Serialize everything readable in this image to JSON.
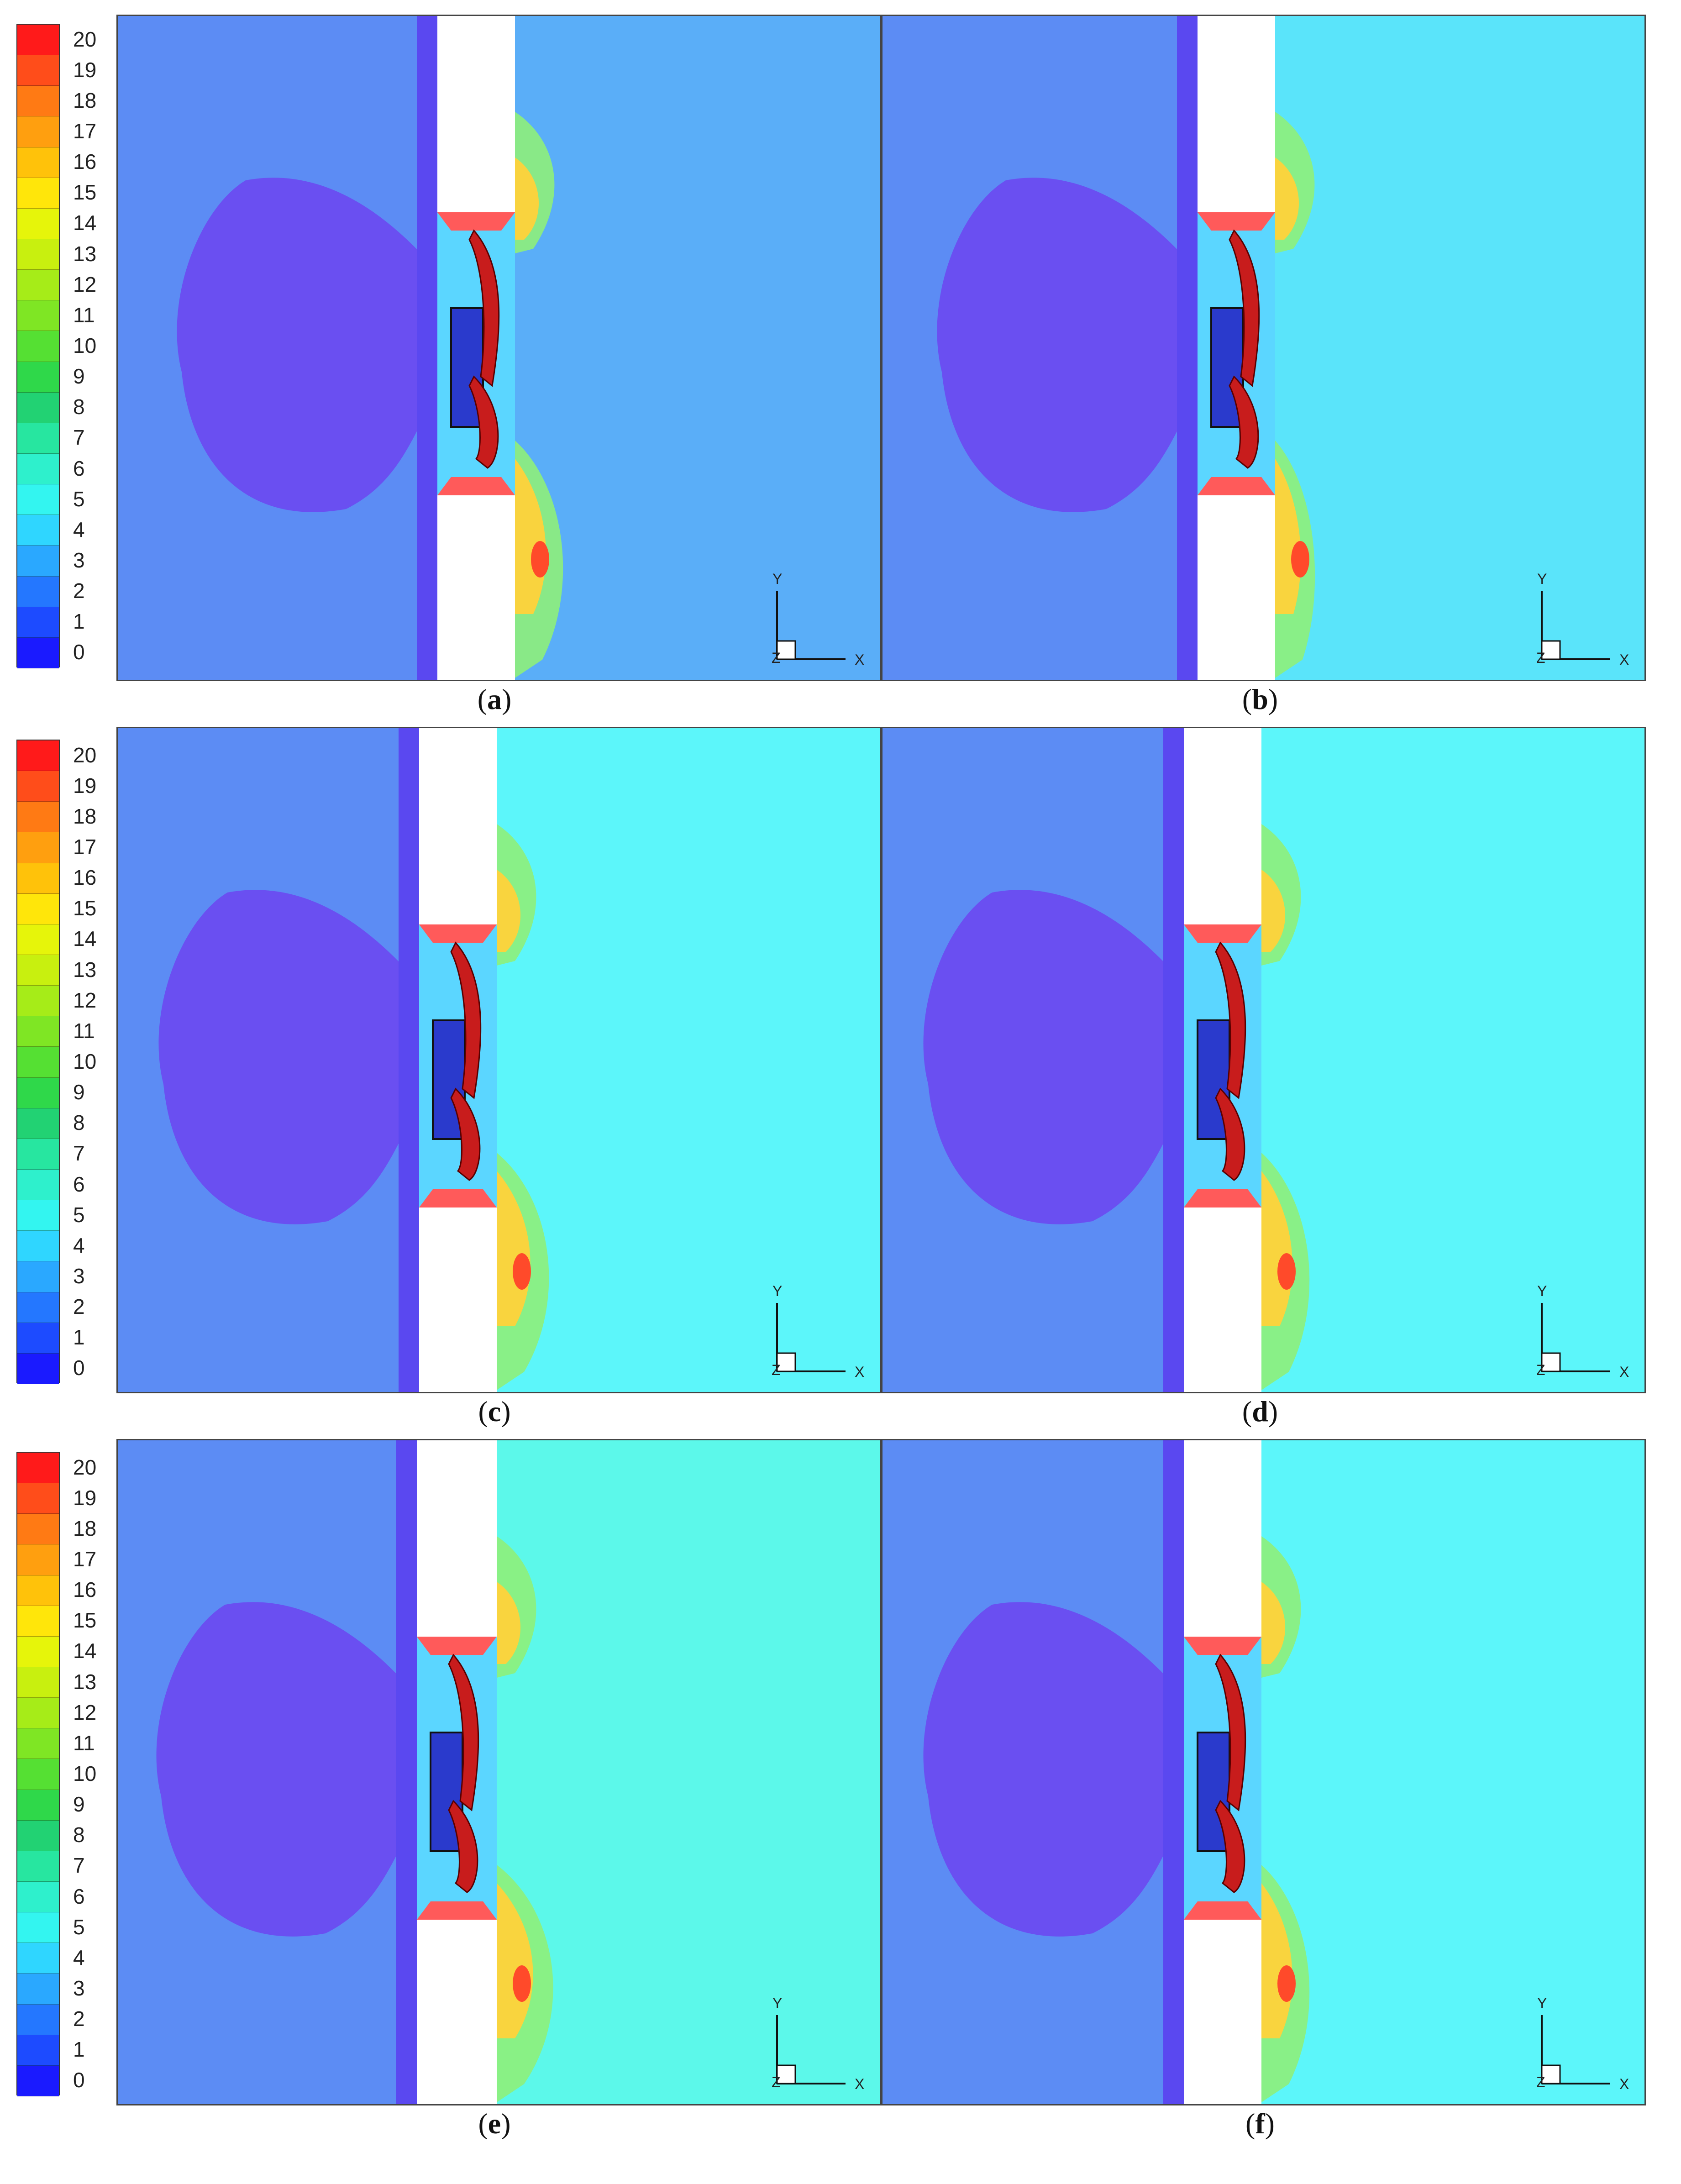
{
  "legend": {
    "ticks": [
      "20",
      "19",
      "18",
      "17",
      "16",
      "15",
      "14",
      "13",
      "12",
      "11",
      "10",
      "9",
      "8",
      "7",
      "6",
      "5",
      "4",
      "3",
      "2",
      "1",
      "0"
    ],
    "colors": [
      "#ff1a1a",
      "#ff4d1a",
      "#ff7a14",
      "#ff9f0f",
      "#ffc20a",
      "#ffe60a",
      "#e6f50a",
      "#c8f00f",
      "#a6ec18",
      "#7fe624",
      "#55e033",
      "#2fd84a",
      "#22d273",
      "#27e6a0",
      "#2ef0cc",
      "#33f5f0",
      "#2fd6ff",
      "#2aa8ff",
      "#2477ff",
      "#1d4bff",
      "#1a1aff"
    ]
  },
  "panels": [
    {
      "letter": "a",
      "open": "(",
      "close": ")"
    },
    {
      "letter": "b",
      "open": "(",
      "close": ")"
    },
    {
      "letter": "c",
      "open": "(",
      "close": ")"
    },
    {
      "letter": "d",
      "open": "(",
      "close": ")"
    },
    {
      "letter": "e",
      "open": "(",
      "close": ")"
    },
    {
      "letter": "f",
      "open": "(",
      "close": ")"
    }
  ],
  "axes": {
    "x": "X",
    "y": "Y",
    "z": "Z"
  }
}
